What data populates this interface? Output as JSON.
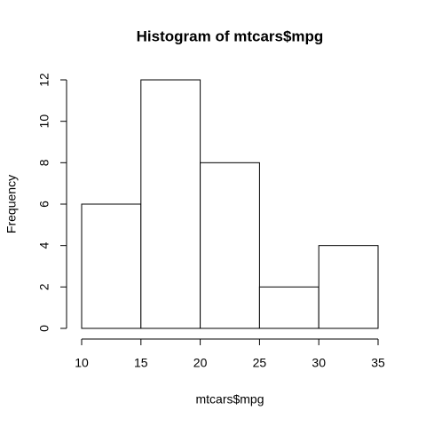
{
  "chart_data": {
    "type": "histogram",
    "title": "Histogram of mtcars$mpg",
    "x_label": "mtcars$mpg",
    "y_label": "Frequency",
    "bins": [
      10,
      15,
      20,
      25,
      30,
      35
    ],
    "values": [
      6,
      12,
      8,
      2,
      4
    ],
    "color": "#ffffff",
    "edge_color": "#000000",
    "xlim": [
      10,
      35
    ],
    "xticks": [
      10,
      15,
      20,
      25,
      30,
      35
    ],
    "ylim": [
      0,
      12
    ],
    "yticks": [
      0,
      2,
      4,
      6,
      8,
      10,
      12
    ],
    "grid": false
  }
}
